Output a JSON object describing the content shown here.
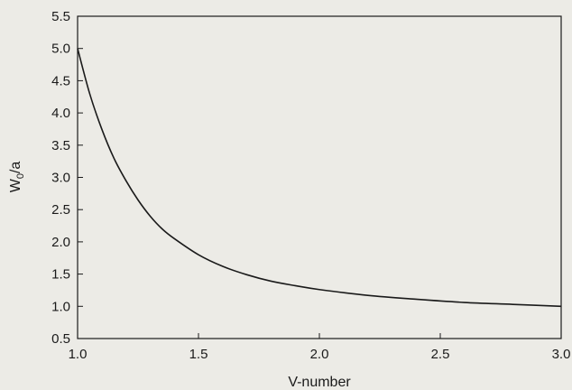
{
  "chart_data": {
    "type": "line",
    "title": "",
    "xlabel": "V-number",
    "ylabel_main": "W",
    "ylabel_sub": "0",
    "ylabel_tail": "/a",
    "xlim": [
      1.0,
      3.0
    ],
    "ylim": [
      0.5,
      5.5
    ],
    "x_ticks": [
      "1.0",
      "1.5",
      "2.0",
      "2.5",
      "3.0"
    ],
    "y_ticks": [
      "0.5",
      "1.0",
      "1.5",
      "2.0",
      "2.5",
      "3.0",
      "3.5",
      "4.0",
      "4.5",
      "5.0",
      "5.5"
    ],
    "grid": false,
    "legend": "none",
    "line_color": "#1a1a1a",
    "series": [
      {
        "x": [
          1.0,
          1.05,
          1.1,
          1.15,
          1.2,
          1.25,
          1.3,
          1.35,
          1.4,
          1.5,
          1.6,
          1.7,
          1.8,
          1.9,
          2.0,
          2.2,
          2.4,
          2.6,
          2.8,
          3.0
        ],
        "y": [
          5.0,
          4.3,
          3.75,
          3.3,
          2.95,
          2.65,
          2.4,
          2.2,
          2.05,
          1.8,
          1.62,
          1.49,
          1.39,
          1.32,
          1.26,
          1.17,
          1.11,
          1.06,
          1.03,
          1.0
        ]
      }
    ]
  }
}
